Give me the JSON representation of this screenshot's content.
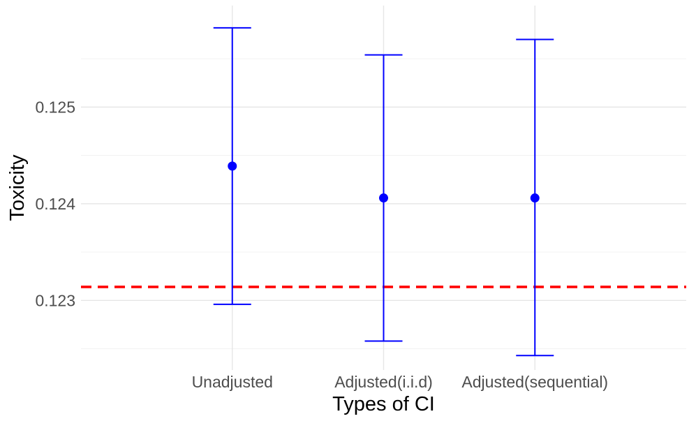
{
  "chart_data": {
    "type": "errorbar",
    "title": "",
    "xlabel": "Types of CI",
    "ylabel": "Toxicity",
    "categories": [
      "Unadjusted",
      "Adjusted(i.i.d)",
      "Adjusted(sequential)"
    ],
    "series": [
      {
        "estimate": [
          0.12439,
          0.12406,
          0.12406
        ],
        "lower": [
          0.12296,
          0.12258,
          0.12243
        ],
        "upper": [
          0.12582,
          0.12554,
          0.1257
        ]
      }
    ],
    "reference_line": {
      "value": 0.12314,
      "style": "dashed",
      "color": "#ff0000"
    },
    "ylim": [
      0.12228,
      0.12605
    ],
    "yticks": [
      0.123,
      0.124,
      0.125
    ],
    "ytick_labels": [
      "0.123",
      "0.124",
      "0.125"
    ],
    "grid": true,
    "colors": {
      "points": "#0000ff",
      "errorbars": "#0000ff",
      "reference": "#ff0000"
    }
  }
}
